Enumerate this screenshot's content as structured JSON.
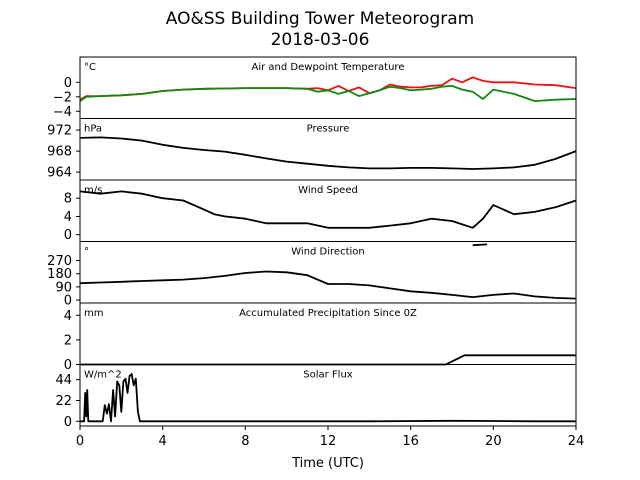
{
  "title": "AO&SS Building Tower Meteorogram",
  "subtitle": "2018-03-06",
  "xlabel": "Time (UTC)",
  "xticks": [
    0,
    4,
    8,
    12,
    16,
    20,
    24
  ],
  "colors": {
    "air_temperature": "#ee1111",
    "dewpoint": "#118811",
    "line": "#000000"
  },
  "chart_data": [
    {
      "type": "line",
      "title": "Air and Dewpoint Temperature",
      "ylabel": "°C",
      "ylim": [
        -5,
        3.5
      ],
      "yticks": [
        0,
        -2,
        -4
      ],
      "x": [
        0,
        0.3,
        1,
        2,
        3,
        4,
        5,
        6,
        7,
        8,
        9,
        10,
        11,
        11.5,
        12,
        12.5,
        13,
        13.5,
        14,
        14.5,
        15,
        15.5,
        16,
        16.5,
        17,
        17.5,
        18,
        18.5,
        19,
        19.5,
        20,
        21,
        22,
        23,
        24
      ],
      "series": [
        {
          "name": "",
          "color": "#ee1111",
          "values": [
            -2.4,
            -1.9,
            -1.9,
            -1.8,
            -1.6,
            -1.2,
            -1.0,
            -0.9,
            -0.85,
            -0.8,
            -0.8,
            -0.8,
            -0.9,
            -0.8,
            -1.1,
            -0.5,
            -1.2,
            -0.7,
            -1.5,
            -1.1,
            -0.3,
            -0.6,
            -0.7,
            -0.7,
            -0.5,
            -0.4,
            0.5,
            0.0,
            0.7,
            0.2,
            0.0,
            0.0,
            -0.3,
            -0.4,
            -0.8
          ]
        },
        {
          "name": "",
          "color": "#118811",
          "values": [
            -2.6,
            -2.0,
            -1.9,
            -1.8,
            -1.6,
            -1.2,
            -1.0,
            -0.9,
            -0.85,
            -0.8,
            -0.8,
            -0.8,
            -0.9,
            -1.3,
            -1.1,
            -1.6,
            -1.2,
            -1.9,
            -1.5,
            -1.1,
            -0.6,
            -0.8,
            -1.1,
            -1.0,
            -0.9,
            -0.6,
            -0.5,
            -1.0,
            -1.3,
            -2.3,
            -1.0,
            -1.6,
            -2.6,
            -2.4,
            -2.3
          ]
        }
      ]
    },
    {
      "type": "line",
      "title": "Pressure",
      "ylabel": "hPa",
      "ylim": [
        962.5,
        974.2
      ],
      "yticks": [
        972,
        968,
        964
      ],
      "x": [
        0,
        1,
        2,
        3,
        4,
        5,
        6,
        7,
        8,
        9,
        10,
        11,
        12,
        13,
        14,
        15,
        16,
        17,
        18,
        19,
        20,
        21,
        22,
        23,
        24
      ],
      "series": [
        {
          "name": "",
          "values": [
            970.5,
            970.6,
            970.4,
            970.0,
            969.2,
            968.6,
            968.2,
            967.9,
            967.3,
            966.6,
            966.0,
            965.6,
            965.2,
            964.9,
            964.7,
            964.7,
            964.8,
            964.8,
            964.7,
            964.6,
            964.7,
            964.9,
            965.4,
            966.5,
            968.0
          ]
        }
      ]
    },
    {
      "type": "line",
      "title": "Wind Speed",
      "ylabel": "m/s",
      "ylim": [
        -1.5,
        12
      ],
      "yticks": [
        8,
        4,
        0
      ],
      "x": [
        0,
        1,
        2,
        3,
        4,
        5,
        6,
        6.5,
        7,
        8,
        9,
        10,
        11,
        12,
        13,
        14,
        15,
        16,
        17,
        18,
        19,
        19.5,
        20,
        21,
        22,
        23,
        24
      ],
      "series": [
        {
          "name": "",
          "values": [
            9.5,
            9.0,
            9.5,
            9.0,
            8.0,
            7.5,
            5.5,
            4.5,
            4.0,
            3.5,
            2.5,
            2.5,
            2.5,
            1.5,
            1.5,
            1.5,
            2.0,
            2.5,
            3.5,
            3.0,
            1.5,
            3.5,
            6.5,
            4.5,
            5.0,
            6.0,
            7.5
          ]
        }
      ]
    },
    {
      "type": "line",
      "title": "Wind Direction",
      "ylabel": "°",
      "ylim": [
        -20,
        400
      ],
      "yticks": [
        270,
        180,
        90,
        0
      ],
      "x": [
        0,
        1,
        2,
        3,
        4,
        5,
        6,
        7,
        8,
        9,
        10,
        11,
        12,
        13,
        14,
        15,
        16,
        17,
        18,
        19,
        20,
        21,
        22,
        23,
        24
      ],
      "series": [
        {
          "name": "",
          "values": [
            115,
            120,
            125,
            130,
            135,
            140,
            150,
            165,
            185,
            195,
            190,
            170,
            110,
            110,
            100,
            80,
            60,
            50,
            35,
            20,
            35,
            45,
            25,
            15,
            10
          ]
        },
        {
          "name": "",
          "x": [
            19,
            19.7
          ],
          "values": [
            375,
            380
          ]
        }
      ]
    },
    {
      "type": "line",
      "title": "Accumulated Precipitation Since 0Z",
      "ylabel": "mm",
      "ylim": [
        0,
        5
      ],
      "yticks": [
        4,
        2,
        0
      ],
      "x": [
        0,
        17.7,
        18.0,
        18.3,
        18.6,
        19.0,
        24
      ],
      "series": [
        {
          "name": "",
          "values": [
            0,
            0,
            0.25,
            0.5,
            0.75,
            0.75,
            0.75
          ]
        }
      ]
    },
    {
      "type": "line",
      "title": "Solar Flux",
      "ylabel": "W/m^2",
      "ylim": [
        -5,
        60
      ],
      "yticks": [
        44,
        22,
        0
      ],
      "x": [
        0,
        0.2,
        0.25,
        0.3,
        0.35,
        0.4,
        1.1,
        1.2,
        1.3,
        1.4,
        1.5,
        1.6,
        1.7,
        1.8,
        1.9,
        2.0,
        2.1,
        2.2,
        2.3,
        2.4,
        2.5,
        2.6,
        2.7,
        2.8,
        2.9,
        3.0,
        4.0,
        6.0,
        10.0,
        14.0,
        18.0,
        20.0,
        22.0,
        24.0
      ],
      "series": [
        {
          "name": "",
          "values": [
            0,
            0,
            30,
            5,
            33,
            0,
            0,
            17,
            8,
            18,
            0,
            33,
            5,
            42,
            38,
            10,
            42,
            45,
            30,
            48,
            50,
            38,
            45,
            10,
            0,
            0,
            0,
            0,
            0,
            0,
            0.5,
            0.3,
            0,
            0
          ]
        }
      ]
    }
  ]
}
